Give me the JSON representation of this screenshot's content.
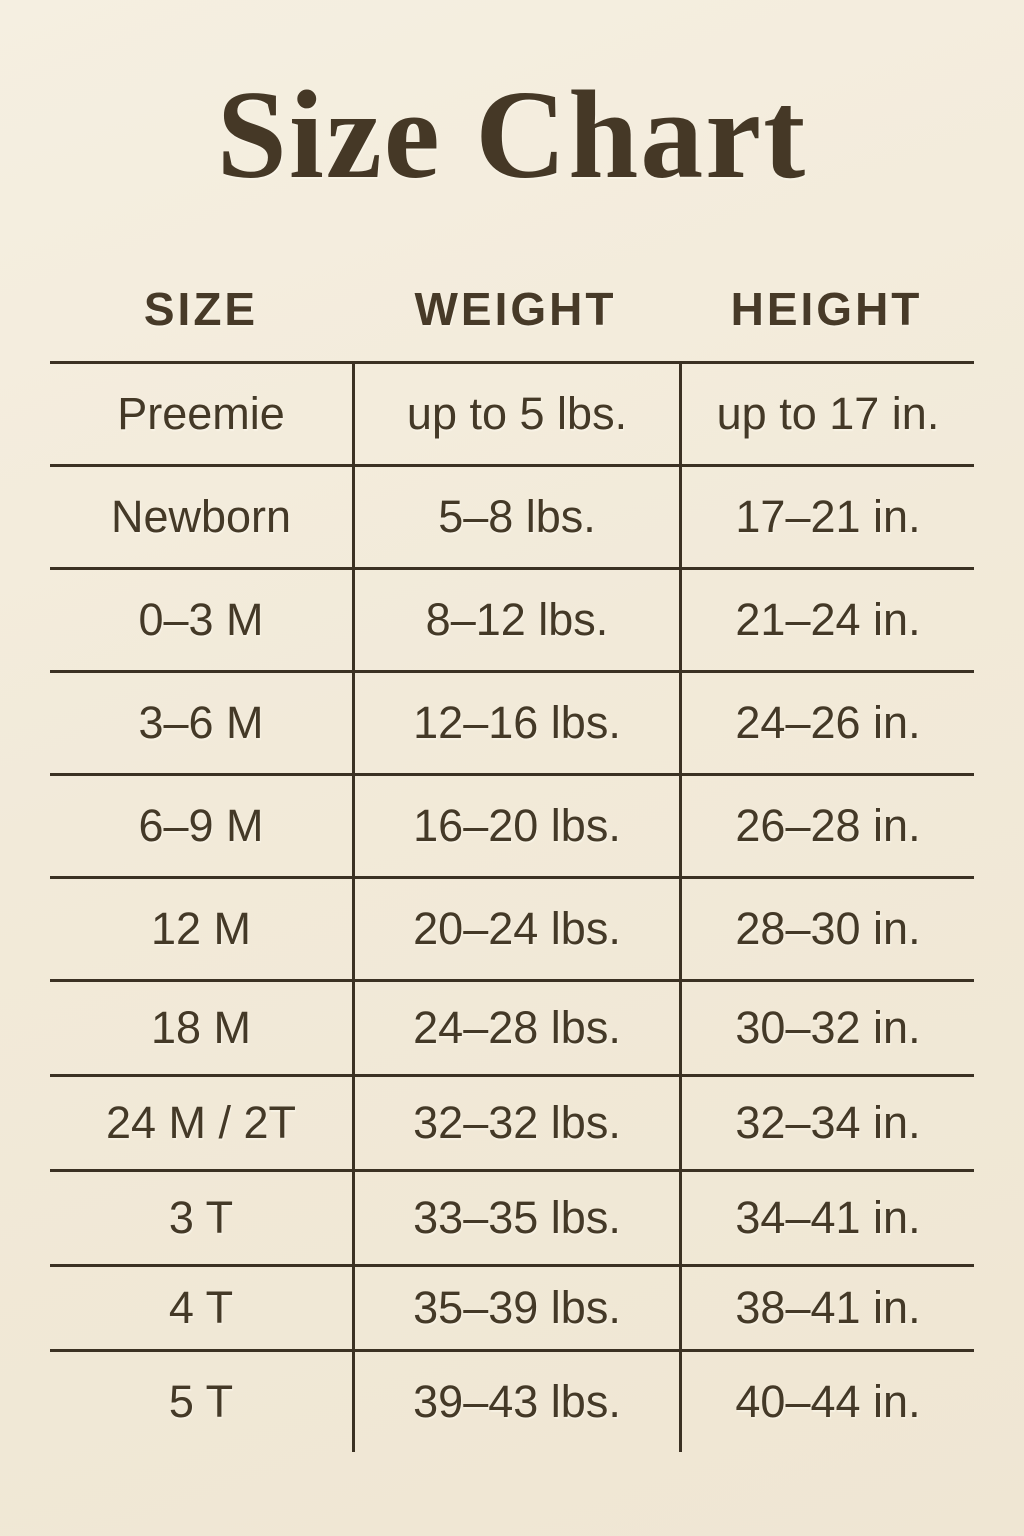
{
  "title": "Size Chart",
  "chart_data": {
    "type": "table",
    "title": "Size Chart",
    "columns": [
      "SIZE",
      "WEIGHT",
      "HEIGHT"
    ],
    "rows": [
      [
        "Preemie",
        "up to 5 lbs.",
        "up to 17 in."
      ],
      [
        "Newborn",
        "5–8 lbs.",
        "17–21 in."
      ],
      [
        "0–3 M",
        "8–12 lbs.",
        "21–24 in."
      ],
      [
        "3–6 M",
        "12–16 lbs.",
        "24–26 in."
      ],
      [
        "6–9 M",
        "16–20 lbs.",
        "26–28 in."
      ],
      [
        "12 M",
        "20–24 lbs.",
        "28–30 in."
      ],
      [
        "18 M",
        "24–28 lbs.",
        "30–32 in."
      ],
      [
        "24 M / 2T",
        "32–32 lbs.",
        "32–34 in."
      ],
      [
        "3 T",
        "33–35 lbs.",
        "34–41 in."
      ],
      [
        "4 T",
        "35–39 lbs.",
        "38–41 in."
      ],
      [
        "5 T",
        "39–43 lbs.",
        "40–44 in."
      ]
    ]
  },
  "colors": {
    "background": "#f2ead9",
    "text": "#443927",
    "grid_line": "#3b3123",
    "title_text": "#453826"
  }
}
